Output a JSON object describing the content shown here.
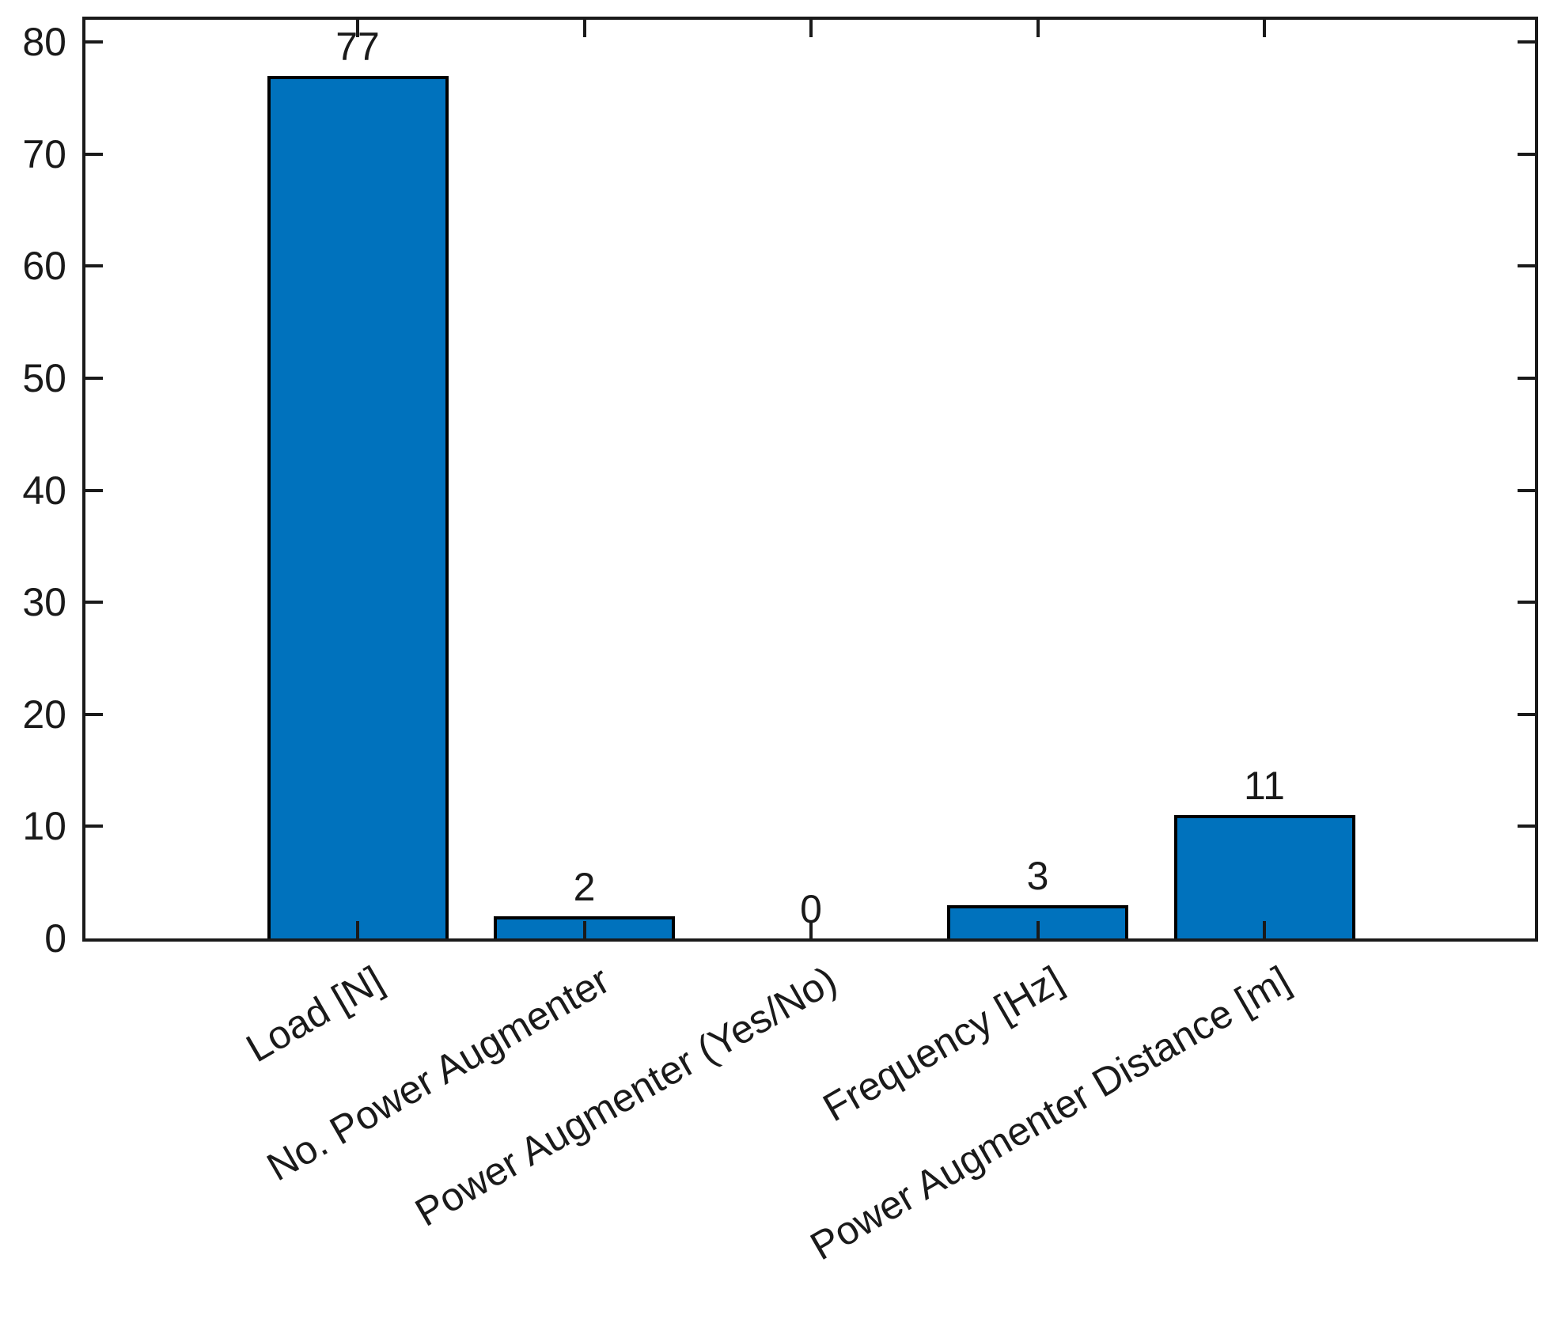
{
  "chart_data": {
    "type": "bar",
    "title": "",
    "xlabel": "",
    "ylabel": "",
    "categories": [
      "Load [N]",
      "No. Power Augmenter",
      "Power Augmenter (Yes/No)",
      "Frequency [Hz]",
      "Power Augmenter Distance [m]"
    ],
    "values": [
      77,
      2,
      0,
      3,
      11
    ],
    "value_labels": [
      "77",
      "2",
      "0",
      "3",
      "11"
    ],
    "y_ticks": [
      0,
      10,
      20,
      30,
      40,
      50,
      60,
      70,
      80
    ],
    "y_tick_labels": [
      "0",
      "10",
      "20",
      "30",
      "40",
      "50",
      "60",
      "70",
      "80"
    ],
    "ylim": [
      0,
      82
    ],
    "bar_color": "#0072BD",
    "bar_edge_color": "#000000",
    "axis_color": "#1a1a1a",
    "text_color": "#1a1a1a",
    "background_color": "#ffffff",
    "layout": {
      "grid": false,
      "box": true,
      "tick_direction": "in",
      "x_tick_label_rotation_deg": 30,
      "legend": "none",
      "bar_width_fraction": 0.8
    }
  }
}
